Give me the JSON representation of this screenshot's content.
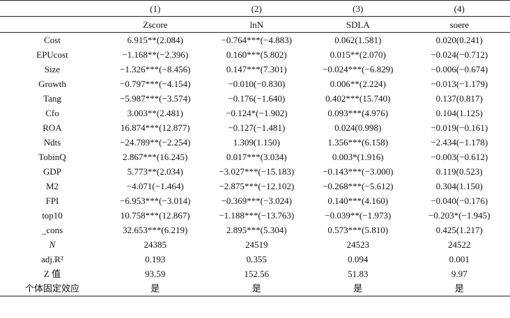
{
  "header": {
    "numbers": [
      "",
      "(1)",
      "(2)",
      "(3)",
      "(4)"
    ],
    "names": [
      "",
      "Zscore",
      "lnN",
      "SDLA",
      "soere"
    ]
  },
  "rows": [
    {
      "label": "Cost",
      "cells": [
        "6.915**(2.084)",
        "−0.764***(−4.883)",
        "0.062(1.581)",
        "0.020(0.241)"
      ]
    },
    {
      "label": "EPUcost",
      "cells": [
        "−1.168**(−2.396)",
        "0.160***(5.802)",
        "0.015**(2.070)",
        "−0.024(−0.712)"
      ]
    },
    {
      "label": "Size",
      "cells": [
        "−1.326***(−8.456)",
        "0.147***(7.301)",
        "−0.024***(−6.829)",
        "−0.006(−0.674)"
      ]
    },
    {
      "label": "Growth",
      "cells": [
        "−0.797***(−4.154)",
        "−0.010(−0.830)",
        "0.006**(2.224)",
        "−0.013(−1.179)"
      ]
    },
    {
      "label": "Tang",
      "cells": [
        "−5.987***(−3.574)",
        "−0.176(−1.640)",
        "0.402***(15.740)",
        "0.137(0.817)"
      ]
    },
    {
      "label": "Cfo",
      "cells": [
        "3.003**(2.481)",
        "−0.124*(−1.902)",
        "0.093***(4.976)",
        "0.104(1.125)"
      ]
    },
    {
      "label": "ROA",
      "cells": [
        "16.874***(12.877)",
        "−0.127(−1.481)",
        "0.024(0.998)",
        "−0.019(−0.161)"
      ]
    },
    {
      "label": "Ndts",
      "cells": [
        "−24.789**(−2.254)",
        "1.309(1.150)",
        "1.356***(6.158)",
        "−2.434(−1.178)"
      ]
    },
    {
      "label": "TobinQ",
      "cells": [
        "2.867***(16.245)",
        "0.017***(3.034)",
        "0.003*(1.916)",
        "−0.003(−0.612)"
      ]
    },
    {
      "label": "GDP",
      "cells": [
        "5.773**(2.034)",
        "−3.027***(−15.183)",
        "−0.143***(−3.000)",
        "0.119(0.523)"
      ]
    },
    {
      "label": "M2",
      "cells": [
        "−4.071(−1.464)",
        "−2.875***(−12.102)",
        "−0.268***(−5.612)",
        "0.304(1.150)"
      ]
    },
    {
      "label": "FPI",
      "cells": [
        "−6.953***(−3.014)",
        "−0.369***(−3.024)",
        "0.140***(4.160)",
        "−0.040(−0.176)"
      ]
    },
    {
      "label": "top10",
      "cells": [
        "10.758***(12.867)",
        "−1.188***(−13.763)",
        "−0.039**(−1.973)",
        "−0.203*(−1.945)"
      ]
    },
    {
      "label": "_cons",
      "cells": [
        "32.653***(6.219)",
        "2.895***(5.304)",
        "0.573***(5.810)",
        "0.425(1.217)"
      ]
    },
    {
      "label": "N",
      "italic": true,
      "cells": [
        "24385",
        "24519",
        "24523",
        "24522"
      ]
    },
    {
      "label": "adj.R²",
      "cells": [
        "0.193",
        "0.355",
        "0.094",
        "0.001"
      ]
    },
    {
      "label": "Z 值",
      "cells": [
        "93.59",
        "152.56",
        "51.83",
        "9.97"
      ]
    },
    {
      "label": "个体固定效应",
      "cells": [
        "是",
        "是",
        "是",
        "是"
      ]
    }
  ]
}
